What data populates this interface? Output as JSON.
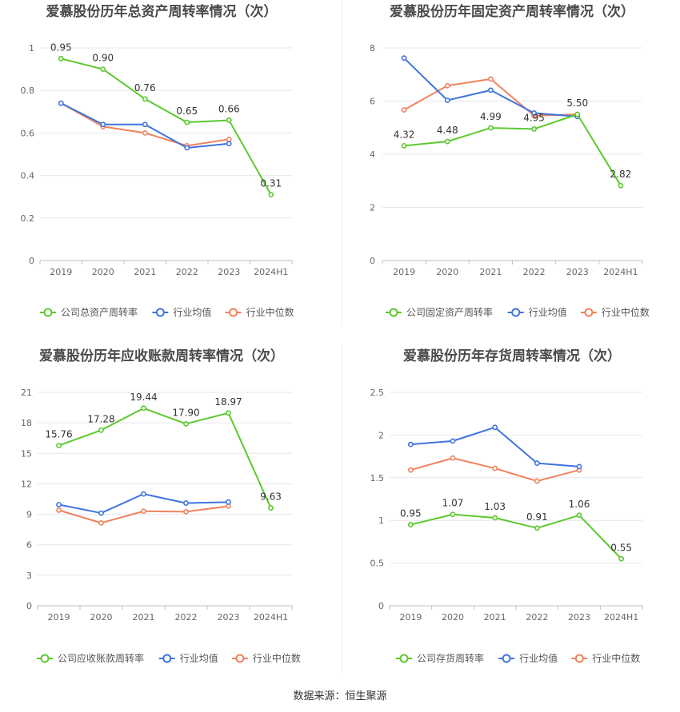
{
  "colors": {
    "company": "#5cc92e",
    "industry_avg": "#3f74de",
    "industry_median": "#f0825e"
  },
  "chart_data": [
    {
      "type": "line",
      "title": "爱慕股份历年总资产周转率情况（次）",
      "categories": [
        "2019",
        "2020",
        "2021",
        "2022",
        "2023",
        "2024H1"
      ],
      "yticks": [
        "0",
        "0.2",
        "0.4",
        "0.6",
        "0.8",
        "1"
      ],
      "ylim": [
        0,
        1
      ],
      "grid": true,
      "legend_position": "bottom",
      "series": [
        {
          "name": "公司总资产周转率",
          "color": "#5cc92e",
          "values": [
            0.95,
            0.9,
            0.76,
            0.65,
            0.66,
            0.31
          ],
          "labels": [
            "0.95",
            "0.90",
            "0.76",
            "0.65",
            "0.66",
            "0.31"
          ]
        },
        {
          "name": "行业均值",
          "color": "#3f74de",
          "values": [
            0.74,
            0.64,
            0.64,
            0.53,
            0.55,
            null
          ]
        },
        {
          "name": "行业中位数",
          "color": "#f0825e",
          "values": [
            0.74,
            0.63,
            0.6,
            0.54,
            0.57,
            null
          ]
        }
      ]
    },
    {
      "type": "line",
      "title": "爱慕股份历年固定资产周转率情况（次）",
      "categories": [
        "2019",
        "2020",
        "2021",
        "2022",
        "2023",
        "2024H1"
      ],
      "yticks": [
        "0",
        "2",
        "4",
        "6",
        "8"
      ],
      "ylim": [
        0,
        8
      ],
      "grid": true,
      "legend_position": "bottom",
      "series": [
        {
          "name": "公司固定资产周转率",
          "color": "#5cc92e",
          "values": [
            4.32,
            4.48,
            4.99,
            4.95,
            5.5,
            2.82
          ],
          "labels": [
            "4.32",
            "4.48",
            "4.99",
            "4.95",
            "5.50",
            "2.82"
          ]
        },
        {
          "name": "行业均值",
          "color": "#3f74de",
          "values": [
            7.62,
            6.03,
            6.41,
            5.55,
            5.42,
            null
          ]
        },
        {
          "name": "行业中位数",
          "color": "#f0825e",
          "values": [
            5.67,
            6.58,
            6.83,
            5.45,
            5.5,
            null
          ]
        }
      ]
    },
    {
      "type": "line",
      "title": "爱慕股份历年应收账款周转率情况（次）",
      "categories": [
        "2019",
        "2020",
        "2021",
        "2022",
        "2023",
        "2024H1"
      ],
      "yticks": [
        "0",
        "3",
        "6",
        "9",
        "12",
        "15",
        "18",
        "21"
      ],
      "ylim": [
        0,
        21
      ],
      "grid": true,
      "legend_position": "bottom",
      "series": [
        {
          "name": "公司应收账款周转率",
          "color": "#5cc92e",
          "values": [
            15.76,
            17.28,
            19.44,
            17.9,
            18.97,
            9.63
          ],
          "labels": [
            "15.76",
            "17.28",
            "19.44",
            "17.90",
            "18.97",
            "9.63"
          ]
        },
        {
          "name": "行业均值",
          "color": "#3f74de",
          "values": [
            9.95,
            9.12,
            11.0,
            10.1,
            10.2,
            null
          ]
        },
        {
          "name": "行业中位数",
          "color": "#f0825e",
          "values": [
            9.4,
            8.15,
            9.3,
            9.25,
            9.8,
            null
          ]
        }
      ]
    },
    {
      "type": "line",
      "title": "爱慕股份历年存货周转率情况（次）",
      "categories": [
        "2019",
        "2020",
        "2021",
        "2022",
        "2023",
        "2024H1"
      ],
      "yticks": [
        "0",
        "0.5",
        "1",
        "1.5",
        "2",
        "2.5"
      ],
      "ylim": [
        0,
        2.5
      ],
      "grid": true,
      "legend_position": "bottom",
      "series": [
        {
          "name": "公司存货周转率",
          "color": "#5cc92e",
          "values": [
            0.95,
            1.07,
            1.03,
            0.91,
            1.06,
            0.55
          ],
          "labels": [
            "0.95",
            "1.07",
            "1.03",
            "0.91",
            "1.06",
            "0.55"
          ]
        },
        {
          "name": "行业均值",
          "color": "#3f74de",
          "values": [
            1.89,
            1.93,
            2.09,
            1.67,
            1.63,
            null
          ]
        },
        {
          "name": "行业中位数",
          "color": "#f0825e",
          "values": [
            1.59,
            1.73,
            1.61,
            1.46,
            1.59,
            null
          ]
        }
      ]
    }
  ],
  "footer": "数据来源：恒生聚源"
}
